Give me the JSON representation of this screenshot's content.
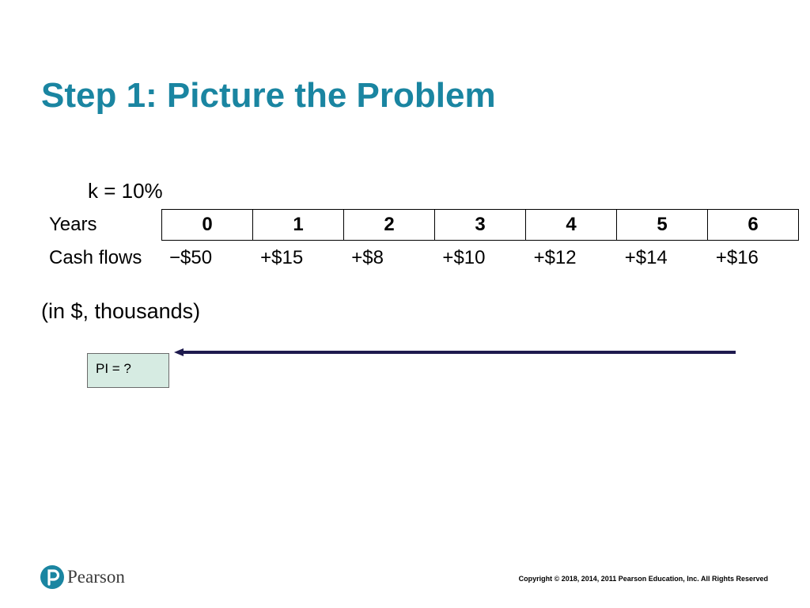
{
  "slide": {
    "title": "Step 1: Picture the Problem",
    "rate_label": "k = 10%",
    "years_label": "Years",
    "cash_flows_label": "Cash flows",
    "years": [
      "0",
      "1",
      "2",
      "3",
      "4",
      "5",
      "6"
    ],
    "cash_flows": [
      "−$50",
      "+$15",
      "+$8",
      "+$10",
      "+$12",
      "+$14",
      "+$16"
    ],
    "units_note": "(in $, thousands)",
    "pi_box_label": "PI = ?"
  },
  "footer": {
    "logo_text": "Pearson",
    "copyright": "Copyright © 2018, 2014, 2011 Pearson Education, Inc. All Rights Reserved"
  },
  "colors": {
    "title": "#1a85a1",
    "pi_box_fill": "#d6ebe2",
    "arrow": "#1e1a4e",
    "logo": "#1a85a1"
  },
  "icons": {
    "logo": "pearson-p-logo-icon",
    "arrow": "left-arrow-icon"
  }
}
